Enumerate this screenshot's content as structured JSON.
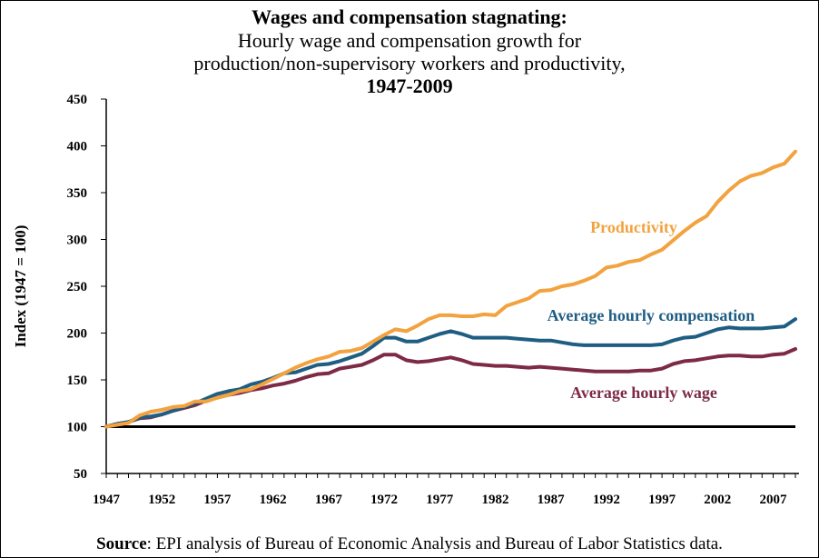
{
  "title": {
    "line1": "Wages and compensation stagnating:",
    "line2": "Hourly wage and compensation growth for",
    "line3": "production/non-supervisory workers and productivity,",
    "line4": "1947-2009"
  },
  "source": {
    "label": "Source",
    "text": ": EPI analysis of Bureau of Economic Analysis and Bureau of Labor Statistics data."
  },
  "chart_data": {
    "type": "line",
    "ylabel": "Index (1947 = 100)",
    "xlabel": "",
    "xlim": [
      1947,
      2009
    ],
    "ylim": [
      50,
      450
    ],
    "yticks": [
      50,
      100,
      150,
      200,
      250,
      300,
      350,
      400,
      450
    ],
    "xticks": [
      1947,
      1952,
      1957,
      1962,
      1967,
      1972,
      1977,
      1982,
      1987,
      1992,
      1997,
      2002,
      2007
    ],
    "reference_line": 100,
    "grid": false,
    "x": [
      1947,
      1948,
      1949,
      1950,
      1951,
      1952,
      1953,
      1954,
      1955,
      1956,
      1957,
      1958,
      1959,
      1960,
      1961,
      1962,
      1963,
      1964,
      1965,
      1966,
      1967,
      1968,
      1969,
      1970,
      1971,
      1972,
      1973,
      1974,
      1975,
      1976,
      1977,
      1978,
      1979,
      1980,
      1981,
      1982,
      1983,
      1984,
      1985,
      1986,
      1987,
      1988,
      1989,
      1990,
      1991,
      1992,
      1993,
      1994,
      1995,
      1996,
      1997,
      1998,
      1999,
      2000,
      2001,
      2002,
      2003,
      2004,
      2005,
      2006,
      2007,
      2008,
      2009
    ],
    "series": [
      {
        "name": "Productivity",
        "color": "#F2A23E",
        "values": [
          100,
          102,
          104,
          112,
          116,
          118,
          121,
          122,
          127,
          127,
          131,
          134,
          138,
          140,
          145,
          151,
          157,
          163,
          168,
          172,
          175,
          180,
          181,
          184,
          191,
          198,
          204,
          202,
          208,
          215,
          219,
          219,
          218,
          218,
          220,
          219,
          229,
          233,
          237,
          245,
          246,
          250,
          252,
          256,
          261,
          270,
          272,
          276,
          278,
          284,
          289,
          299,
          309,
          318,
          325,
          340,
          352,
          362,
          368,
          371,
          377,
          381,
          394
        ]
      },
      {
        "name": "Average hourly compensation",
        "color": "#1F5D83",
        "values": [
          100,
          103,
          105,
          110,
          111,
          113,
          117,
          121,
          125,
          130,
          135,
          138,
          140,
          145,
          148,
          152,
          157,
          158,
          162,
          166,
          167,
          170,
          174,
          178,
          186,
          195,
          195,
          191,
          191,
          195,
          199,
          202,
          199,
          195,
          195,
          195,
          195,
          194,
          193,
          192,
          192,
          190,
          188,
          187,
          187,
          187,
          187,
          187,
          187,
          187,
          188,
          192,
          195,
          196,
          200,
          204,
          206,
          205,
          205,
          205,
          206,
          207,
          215
        ]
      },
      {
        "name": "Average hourly wage",
        "color": "#7D2A44",
        "values": [
          100,
          103,
          105,
          109,
          110,
          113,
          117,
          120,
          123,
          128,
          131,
          134,
          136,
          139,
          141,
          144,
          146,
          149,
          153,
          156,
          157,
          162,
          164,
          166,
          171,
          177,
          177,
          171,
          169,
          170,
          172,
          174,
          171,
          167,
          166,
          165,
          165,
          164,
          163,
          164,
          163,
          162,
          161,
          160,
          159,
          159,
          159,
          159,
          160,
          160,
          162,
          167,
          170,
          171,
          173,
          175,
          176,
          176,
          175,
          175,
          177,
          178,
          183
        ]
      }
    ],
    "annotations": [
      {
        "text": "Productivity",
        "series": "Productivity"
      },
      {
        "text": "Average hourly compensation",
        "series": "Average hourly compensation"
      },
      {
        "text": "Average hourly wage",
        "series": "Average hourly wage"
      }
    ]
  }
}
